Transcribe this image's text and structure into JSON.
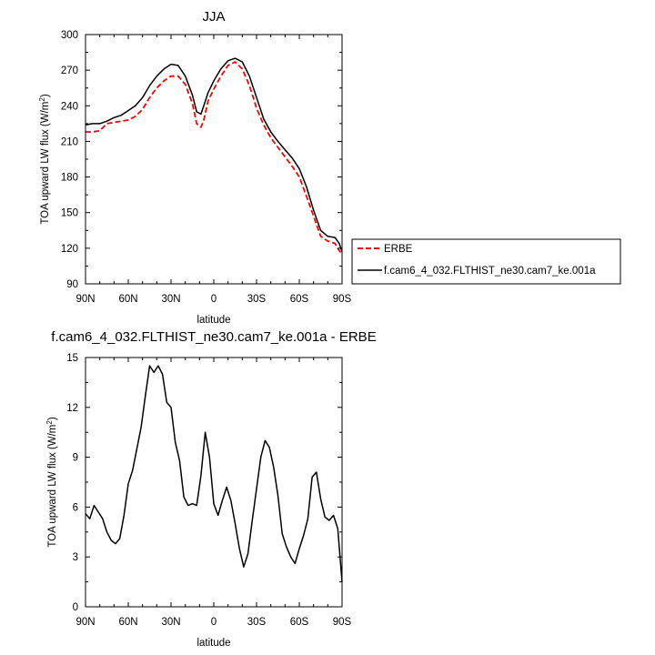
{
  "chart_data": [
    {
      "type": "line",
      "title": "JJA",
      "xlabel": "latitude",
      "ylabel_main": "TOA upward LW flux (W/m",
      "ylabel_sup": "2",
      "ylabel_end": ")",
      "xlim": [
        90,
        -90
      ],
      "ylim": [
        90,
        300
      ],
      "xticks": [
        90,
        60,
        30,
        0,
        -30,
        -60,
        -90
      ],
      "xtick_labels": [
        "90N",
        "60N",
        "30N",
        "0",
        "30S",
        "60S",
        "90S"
      ],
      "yticks": [
        90,
        120,
        150,
        180,
        210,
        240,
        270,
        300
      ],
      "ytick_labels": [
        "90",
        "120",
        "150",
        "180",
        "210",
        "240",
        "270",
        "300"
      ],
      "grid": false,
      "legend_position": "right",
      "series": [
        {
          "name": "ERBE",
          "color": "#ff0000",
          "dash": "dashed",
          "x": [
            90,
            85,
            80,
            75,
            70,
            65,
            60,
            55,
            50,
            45,
            40,
            35,
            30,
            25,
            20,
            15,
            12,
            9,
            7,
            4,
            0,
            -5,
            -10,
            -15,
            -20,
            -25,
            -30,
            -35,
            -40,
            -45,
            -50,
            -55,
            -60,
            -65,
            -70,
            -75,
            -80,
            -85,
            -88,
            -90
          ],
          "y": [
            218,
            218,
            219,
            225,
            226,
            227,
            228,
            231,
            237,
            247,
            255,
            261,
            265,
            265,
            258,
            242,
            225,
            222,
            228,
            244,
            254,
            265,
            274,
            277,
            271,
            257,
            238,
            224,
            213,
            205,
            197,
            189,
            180,
            164,
            147,
            130,
            126,
            124,
            118,
            115
          ]
        },
        {
          "name": "f.cam6_4_032.FLTHIST_ne30.cam7_ke.001a",
          "color": "#000000",
          "dash": "solid",
          "x": [
            90,
            85,
            80,
            75,
            70,
            65,
            60,
            55,
            50,
            45,
            40,
            35,
            30,
            25,
            20,
            15,
            12,
            9,
            7,
            4,
            0,
            -5,
            -10,
            -15,
            -20,
            -25,
            -30,
            -35,
            -40,
            -45,
            -50,
            -55,
            -60,
            -65,
            -70,
            -75,
            -80,
            -85,
            -88,
            -90
          ],
          "y": [
            224,
            225,
            225,
            227,
            230,
            232,
            236,
            240,
            247,
            257,
            265,
            271,
            275,
            274,
            265,
            249,
            235,
            233,
            240,
            251,
            261,
            271,
            278,
            280,
            277,
            265,
            247,
            229,
            218,
            210,
            203,
            196,
            187,
            172,
            152,
            135,
            130,
            129,
            124,
            117
          ]
        }
      ]
    },
    {
      "type": "line",
      "title": "f.cam6_4_032.FLTHIST_ne30.cam7_ke.001a - ERBE",
      "xlabel": "latitude",
      "ylabel_main": "TOA upward LW flux (W/m",
      "ylabel_sup": "2",
      "ylabel_end": ")",
      "xlim": [
        90,
        -90
      ],
      "ylim": [
        0,
        15
      ],
      "xticks": [
        90,
        60,
        30,
        0,
        -30,
        -60,
        -90
      ],
      "xtick_labels": [
        "90N",
        "60N",
        "30N",
        "0",
        "30S",
        "60S",
        "90S"
      ],
      "yticks": [
        0,
        3,
        6,
        9,
        12,
        15
      ],
      "ytick_labels": [
        "0",
        "3",
        "6",
        "9",
        "12",
        "15"
      ],
      "grid": false,
      "series": [
        {
          "color": "#000000",
          "dash": "solid",
          "x": [
            90,
            87,
            84,
            81,
            78,
            75,
            72,
            69,
            66,
            63,
            60,
            57,
            54,
            51,
            48,
            45,
            42,
            39,
            36,
            33,
            30,
            27,
            24,
            21,
            18,
            15,
            12,
            9,
            6,
            3,
            0,
            -3,
            -6,
            -9,
            -12,
            -15,
            -18,
            -21,
            -24,
            -27,
            -30,
            -33,
            -36,
            -39,
            -42,
            -45,
            -48,
            -51,
            -54,
            -57,
            -60,
            -63,
            -66,
            -69,
            -72,
            -75,
            -78,
            -81,
            -84,
            -87,
            -90
          ],
          "y": [
            5.6,
            5.3,
            6.1,
            5.7,
            5.3,
            4.5,
            4.0,
            3.8,
            4.1,
            5.5,
            7.4,
            8.2,
            9.5,
            10.8,
            12.7,
            14.5,
            14.1,
            14.5,
            14.0,
            12.3,
            12.0,
            9.9,
            8.8,
            6.6,
            6.1,
            6.2,
            6.1,
            7.9,
            10.5,
            9.0,
            6.2,
            5.5,
            6.4,
            7.2,
            6.4,
            5.0,
            3.5,
            2.4,
            3.2,
            5.2,
            7.1,
            9.0,
            10.0,
            9.6,
            8.4,
            6.7,
            4.4,
            3.6,
            3.0,
            2.6,
            3.5,
            4.3,
            5.3,
            7.8,
            8.1,
            6.5,
            5.4,
            5.2,
            5.5,
            4.7,
            1.5
          ]
        }
      ]
    }
  ]
}
